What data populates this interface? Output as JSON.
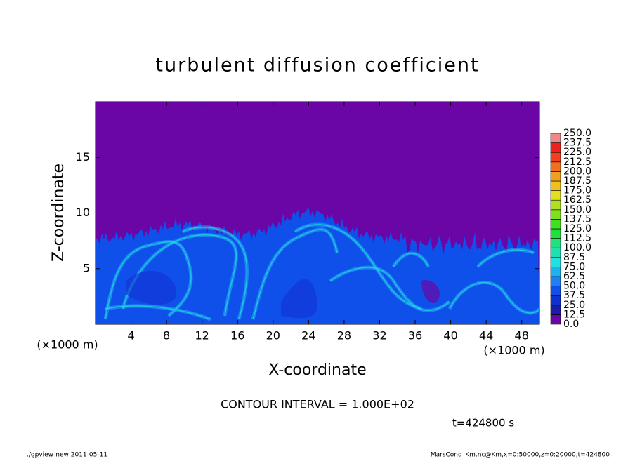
{
  "chart_data": {
    "type": "heatmap",
    "title": "turbulent diffusion coefficient",
    "xlabel": "X-coordinate",
    "ylabel": "Z-coordinate",
    "x_unit": "(×1000 m)",
    "y_unit": "(×1000 m)",
    "xlim": [
      0,
      50
    ],
    "ylim": [
      0,
      20
    ],
    "xticks": [
      4,
      8,
      12,
      16,
      20,
      24,
      28,
      32,
      36,
      40,
      44,
      48
    ],
    "yticks": [
      5,
      10,
      15
    ],
    "contour_note": "CONTOUR INTERVAL = 1.000E+02",
    "time_note": "t=424800 s",
    "footer_left": "./gpview-new  2011-05-11",
    "footer_right": "MarsCond_Km.nc@Km,x=0:50000,z=0:20000,t=424800",
    "colorbar": {
      "levels": [
        {
          "value": 0,
          "label": "0.0"
        },
        12.5,
        {
          "value": 25,
          "label": "25.0"
        },
        37.5,
        {
          "value": 50,
          "label": "50.0"
        },
        62.5,
        {
          "value": 75,
          "label": "75.0"
        },
        87.5,
        {
          "value": 100,
          "label": "100.0"
        },
        112.5,
        {
          "value": 125,
          "label": "125.0"
        },
        137.5,
        {
          "value": 150,
          "label": "150.0"
        },
        162.5,
        {
          "value": 175,
          "label": "175.0"
        },
        187.5,
        {
          "value": 200,
          "label": "200.0"
        },
        212.5,
        {
          "value": 225,
          "label": "225.0"
        },
        237.5,
        {
          "value": 250,
          "label": "250.0"
        }
      ],
      "colors": [
        "#6b06a6",
        "#1c1ca8",
        "#1030d0",
        "#1050ea",
        "#2080f2",
        "#20b0f2",
        "#20e0e0",
        "#20e0b0",
        "#20e080",
        "#20e040",
        "#40e020",
        "#80e020",
        "#b0e020",
        "#e0e020",
        "#f0c020",
        "#f0a020",
        "#f07020",
        "#f04020",
        "#f02020",
        "#f08888"
      ]
    }
  }
}
